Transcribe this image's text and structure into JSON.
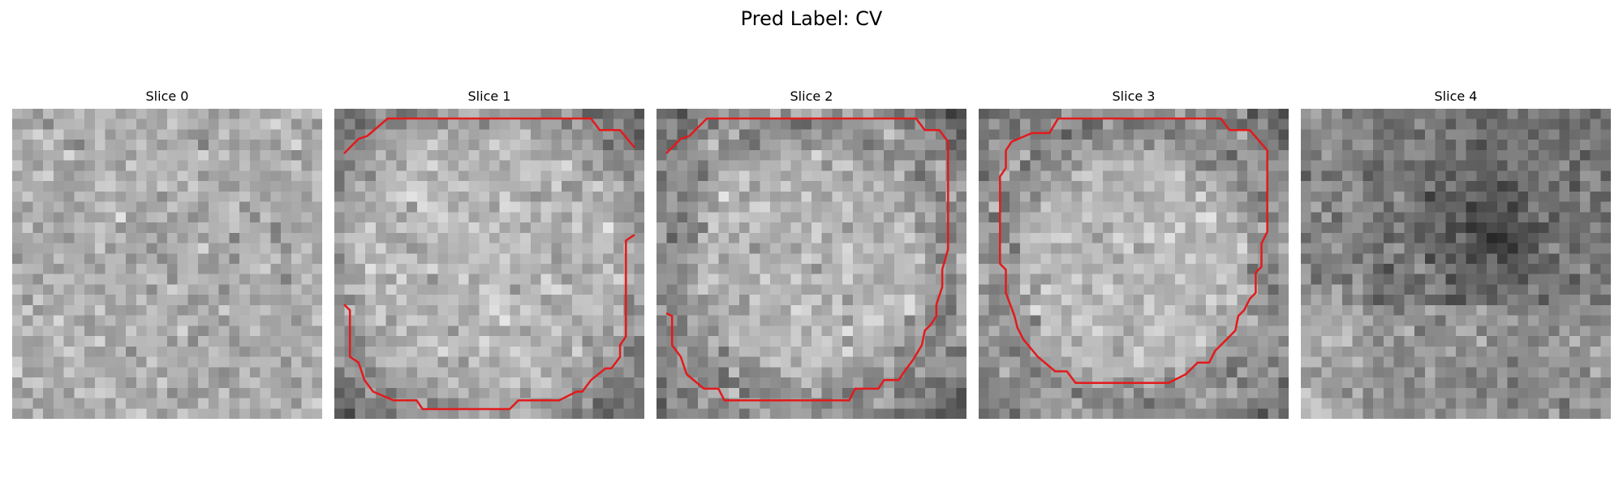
{
  "figure": {
    "title": "Pred Label: CV"
  },
  "contour_color": "#e31a1c",
  "slices": [
    {
      "title": "Slice 0",
      "pattern": "noise",
      "contour": []
    },
    {
      "title": "Slice 1",
      "pattern": "ring-open",
      "contour": [
        [
          [
            0.0,
            0.12
          ],
          [
            0.05,
            0.07
          ],
          [
            0.08,
            0.06
          ],
          [
            0.15,
            0.0
          ],
          [
            0.85,
            0.0
          ],
          [
            0.88,
            0.04
          ],
          [
            0.95,
            0.04
          ],
          [
            1.0,
            0.1
          ]
        ],
        [
          [
            1.0,
            0.4
          ],
          [
            0.97,
            0.42
          ],
          [
            0.97,
            0.75
          ],
          [
            0.95,
            0.78
          ],
          [
            0.95,
            0.82
          ],
          [
            0.92,
            0.86
          ],
          [
            0.9,
            0.86
          ],
          [
            0.85,
            0.9
          ],
          [
            0.82,
            0.94
          ],
          [
            0.8,
            0.94
          ],
          [
            0.74,
            0.97
          ],
          [
            0.6,
            0.97
          ],
          [
            0.57,
            1.0
          ],
          [
            0.27,
            1.0
          ],
          [
            0.25,
            0.97
          ],
          [
            0.2,
            0.97
          ],
          [
            0.17,
            0.97
          ],
          [
            0.1,
            0.94
          ],
          [
            0.07,
            0.9
          ],
          [
            0.05,
            0.84
          ],
          [
            0.02,
            0.82
          ],
          [
            0.02,
            0.66
          ],
          [
            0.0,
            0.64
          ]
        ]
      ]
    },
    {
      "title": "Slice 2",
      "pattern": "ring",
      "contour": [
        [
          [
            0.0,
            0.12
          ],
          [
            0.05,
            0.07
          ],
          [
            0.08,
            0.06
          ],
          [
            0.14,
            0.0
          ],
          [
            0.86,
            0.0
          ],
          [
            0.89,
            0.04
          ],
          [
            0.94,
            0.04
          ],
          [
            0.97,
            0.08
          ],
          [
            0.97,
            0.45
          ],
          [
            0.95,
            0.52
          ],
          [
            0.95,
            0.58
          ],
          [
            0.93,
            0.64
          ],
          [
            0.93,
            0.68
          ],
          [
            0.91,
            0.71
          ],
          [
            0.89,
            0.73
          ],
          [
            0.88,
            0.78
          ],
          [
            0.85,
            0.83
          ],
          [
            0.82,
            0.87
          ],
          [
            0.8,
            0.9
          ],
          [
            0.75,
            0.9
          ],
          [
            0.73,
            0.93
          ],
          [
            0.65,
            0.93
          ],
          [
            0.63,
            0.97
          ],
          [
            0.2,
            0.97
          ],
          [
            0.18,
            0.93
          ],
          [
            0.13,
            0.93
          ],
          [
            0.07,
            0.88
          ],
          [
            0.05,
            0.82
          ],
          [
            0.02,
            0.78
          ],
          [
            0.02,
            0.68
          ],
          [
            0.0,
            0.67
          ]
        ]
      ]
    },
    {
      "title": "Slice 3",
      "pattern": "ring",
      "contour": [
        [
          [
            0.08,
            0.08
          ],
          [
            0.15,
            0.05
          ],
          [
            0.21,
            0.05
          ],
          [
            0.24,
            0.0
          ],
          [
            0.8,
            0.0
          ],
          [
            0.83,
            0.04
          ],
          [
            0.9,
            0.04
          ],
          [
            0.96,
            0.11
          ],
          [
            0.96,
            0.39
          ],
          [
            0.94,
            0.43
          ],
          [
            0.94,
            0.51
          ],
          [
            0.92,
            0.53
          ],
          [
            0.92,
            0.6
          ],
          [
            0.9,
            0.62
          ],
          [
            0.88,
            0.66
          ],
          [
            0.86,
            0.68
          ],
          [
            0.85,
            0.73
          ],
          [
            0.82,
            0.76
          ],
          [
            0.78,
            0.8
          ],
          [
            0.76,
            0.84
          ],
          [
            0.72,
            0.84
          ],
          [
            0.68,
            0.88
          ],
          [
            0.62,
            0.91
          ],
          [
            0.3,
            0.91
          ],
          [
            0.27,
            0.87
          ],
          [
            0.23,
            0.87
          ],
          [
            0.17,
            0.82
          ],
          [
            0.12,
            0.76
          ],
          [
            0.1,
            0.72
          ],
          [
            0.09,
            0.68
          ],
          [
            0.06,
            0.6
          ],
          [
            0.06,
            0.52
          ],
          [
            0.04,
            0.5
          ],
          [
            0.04,
            0.2
          ],
          [
            0.06,
            0.17
          ],
          [
            0.06,
            0.11
          ],
          [
            0.08,
            0.08
          ]
        ]
      ]
    },
    {
      "title": "Slice 4",
      "pattern": "dark",
      "contour": []
    }
  ]
}
